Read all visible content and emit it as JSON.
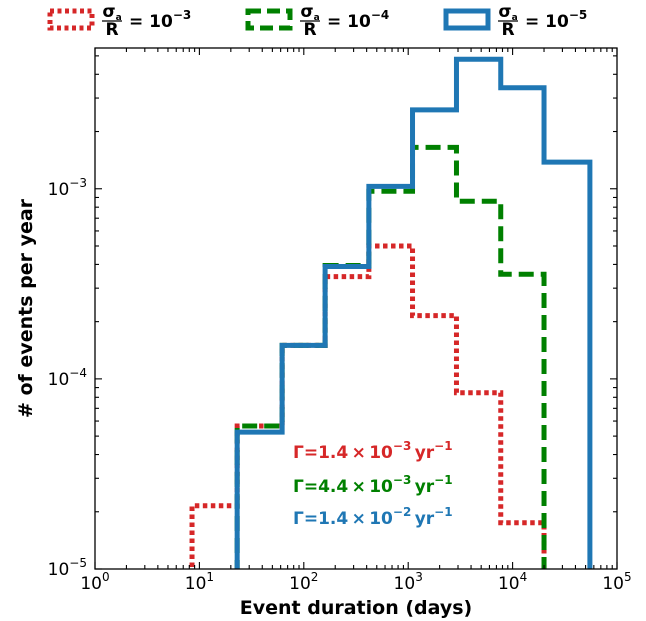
{
  "chart_data": {
    "type": "line",
    "step": "histogram",
    "xscale": "log",
    "yscale": "log",
    "xlim": [
      1,
      100000
    ],
    "ylim": [
      1e-05,
      0.0055
    ],
    "xlabel": "Event duration (days)",
    "ylabel": "# of events per year",
    "legend_position": "top-outside",
    "x_ticks": [
      {
        "base": "10",
        "exp": "0"
      },
      {
        "base": "10",
        "exp": "1"
      },
      {
        "base": "10",
        "exp": "2"
      },
      {
        "base": "10",
        "exp": "3"
      },
      {
        "base": "10",
        "exp": "4"
      },
      {
        "base": "10",
        "exp": "5"
      }
    ],
    "y_ticks": [
      {
        "base": "10",
        "exp": "−5"
      },
      {
        "base": "10",
        "exp": "−4"
      },
      {
        "base": "10",
        "exp": "−3"
      }
    ],
    "bin_edges": [
      8.5,
      23,
      62,
      160,
      420,
      1100,
      2900,
      7700,
      20000,
      55000
    ],
    "series": [
      {
        "name": "σa/R = 10⁻³",
        "legend_symbol": "σ",
        "legend_sub": "a",
        "legend_den": "R",
        "legend_value_base": "= 10",
        "legend_value_exp": "−3",
        "color": "#d62728",
        "style": "dotted",
        "values": [
          2.15e-05,
          5.65e-05,
          0.00015,
          0.000345,
          0.0005,
          0.000215,
          8.45e-05,
          1.75e-05,
          null
        ],
        "rate_prefix": "Γ=1.4 × 10",
        "rate_exp": "−3",
        "rate_unit": " yr",
        "rate_unit_exp": "−1"
      },
      {
        "name": "σa/R = 10⁻⁴",
        "legend_symbol": "σ",
        "legend_sub": "a",
        "legend_den": "R",
        "legend_value_base": "= 10",
        "legend_value_exp": "−4",
        "color": "#008000",
        "style": "dashed",
        "values": [
          null,
          5.65e-05,
          0.00015,
          0.000395,
          0.00097,
          0.00165,
          0.00086,
          0.000355,
          null
        ],
        "rate_prefix": "Γ=4.4 × 10",
        "rate_exp": "−3",
        "rate_unit": " yr",
        "rate_unit_exp": "−1"
      },
      {
        "name": "σa/R = 10⁻⁵",
        "legend_symbol": "σ",
        "legend_sub": "a",
        "legend_den": "R",
        "legend_value_base": "= 10",
        "legend_value_exp": "−5",
        "color": "#1f77b4",
        "style": "solid",
        "values": [
          null,
          5.25e-05,
          0.00015,
          0.00039,
          0.00103,
          0.0026,
          0.0048,
          0.0034,
          0.00138
        ],
        "rate_prefix": "Γ=1.4 × 10",
        "rate_exp": "−2",
        "rate_unit": " yr",
        "rate_unit_exp": "−1"
      }
    ]
  }
}
